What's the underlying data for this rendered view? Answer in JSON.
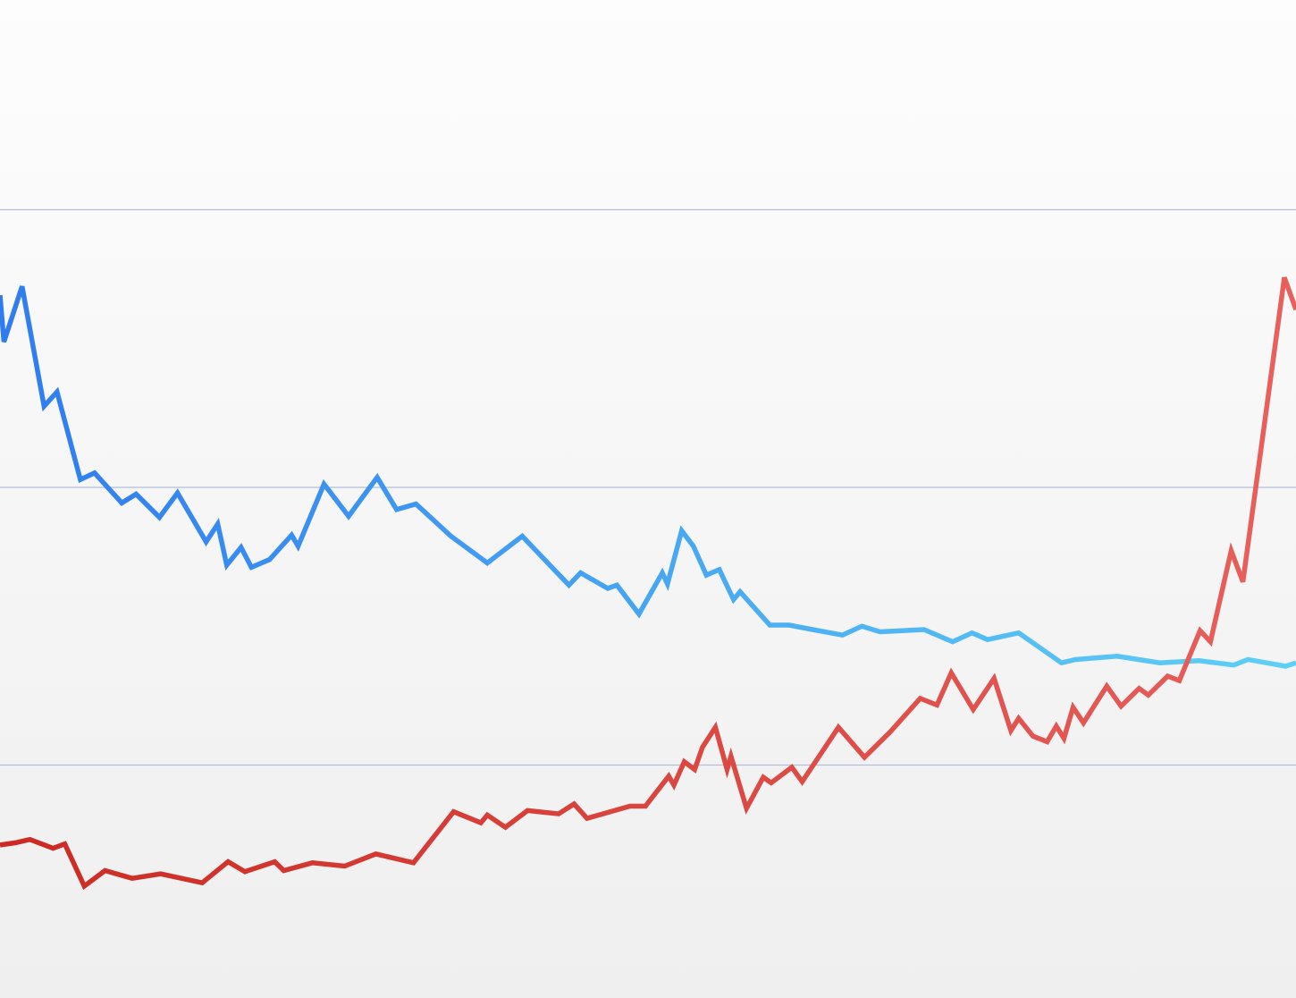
{
  "chart_data": {
    "type": "line",
    "title": "",
    "xlabel": "",
    "ylabel": "",
    "grid": true,
    "legend": "none",
    "ylim": [
      0,
      100
    ],
    "xlim": [
      0,
      100
    ],
    "y_gridlines": [
      25,
      50,
      75
    ],
    "series": [
      {
        "color_start": "#2f7cf0",
        "color_end": "#5fd0f5",
        "points": [
          [
            0.0,
            67.3
          ],
          [
            0.3,
            63.1
          ],
          [
            1.7,
            68.1
          ],
          [
            3.4,
            57.3
          ],
          [
            4.4,
            58.6
          ],
          [
            6.2,
            50.7
          ],
          [
            7.3,
            51.3
          ],
          [
            9.4,
            48.6
          ],
          [
            10.5,
            49.4
          ],
          [
            12.3,
            47.3
          ],
          [
            13.7,
            49.5
          ],
          [
            15.9,
            45.1
          ],
          [
            16.8,
            46.7
          ],
          [
            17.5,
            43.0
          ],
          [
            18.6,
            44.6
          ],
          [
            19.4,
            42.8
          ],
          [
            20.8,
            43.5
          ],
          [
            22.5,
            45.7
          ],
          [
            23.0,
            44.7
          ],
          [
            25.0,
            50.3
          ],
          [
            26.9,
            47.4
          ],
          [
            29.1,
            50.9
          ],
          [
            30.6,
            48.0
          ],
          [
            32.1,
            48.5
          ],
          [
            34.8,
            45.6
          ],
          [
            37.6,
            43.2
          ],
          [
            40.3,
            45.6
          ],
          [
            43.9,
            41.2
          ],
          [
            44.8,
            42.3
          ],
          [
            46.9,
            40.9
          ],
          [
            47.6,
            41.2
          ],
          [
            49.3,
            38.6
          ],
          [
            51.1,
            42.3
          ],
          [
            51.5,
            41.3
          ],
          [
            52.6,
            46.1
          ],
          [
            53.5,
            44.7
          ],
          [
            54.5,
            42.1
          ],
          [
            55.5,
            42.6
          ],
          [
            56.6,
            39.9
          ],
          [
            57.1,
            40.6
          ],
          [
            59.4,
            37.6
          ],
          [
            60.9,
            37.6
          ],
          [
            62.7,
            37.2
          ],
          [
            65.0,
            36.7
          ],
          [
            66.5,
            37.5
          ],
          [
            67.9,
            37.0
          ],
          [
            71.3,
            37.2
          ],
          [
            73.5,
            36.1
          ],
          [
            75.0,
            36.9
          ],
          [
            76.2,
            36.3
          ],
          [
            78.6,
            36.9
          ],
          [
            81.9,
            34.2
          ],
          [
            83.0,
            34.5
          ],
          [
            86.2,
            34.8
          ],
          [
            89.5,
            34.2
          ],
          [
            92.5,
            34.4
          ],
          [
            95.2,
            34.0
          ],
          [
            96.3,
            34.5
          ],
          [
            99.2,
            33.9
          ],
          [
            100.0,
            34.2
          ]
        ]
      },
      {
        "color_start": "#cc2a22",
        "color_end": "#e8605c",
        "points": [
          [
            0.0,
            17.8
          ],
          [
            1.2,
            18.0
          ],
          [
            2.3,
            18.3
          ],
          [
            4.1,
            17.5
          ],
          [
            5.0,
            17.9
          ],
          [
            6.5,
            14.1
          ],
          [
            8.1,
            15.5
          ],
          [
            10.2,
            14.8
          ],
          [
            12.4,
            15.2
          ],
          [
            15.6,
            14.4
          ],
          [
            17.6,
            16.3
          ],
          [
            18.9,
            15.4
          ],
          [
            21.2,
            16.3
          ],
          [
            21.9,
            15.5
          ],
          [
            24.1,
            16.2
          ],
          [
            26.6,
            15.9
          ],
          [
            29.0,
            17.0
          ],
          [
            31.9,
            16.2
          ],
          [
            35.0,
            20.8
          ],
          [
            37.1,
            19.8
          ],
          [
            37.6,
            20.5
          ],
          [
            39.0,
            19.4
          ],
          [
            40.7,
            20.9
          ],
          [
            43.1,
            20.6
          ],
          [
            44.3,
            21.5
          ],
          [
            45.3,
            20.2
          ],
          [
            48.6,
            21.3
          ],
          [
            49.8,
            21.3
          ],
          [
            51.6,
            24.0
          ],
          [
            52.0,
            23.2
          ],
          [
            52.8,
            25.3
          ],
          [
            53.6,
            24.6
          ],
          [
            54.2,
            26.6
          ],
          [
            55.2,
            28.4
          ],
          [
            56.1,
            24.6
          ],
          [
            56.4,
            25.8
          ],
          [
            57.6,
            21.1
          ],
          [
            58.9,
            23.9
          ],
          [
            59.5,
            23.4
          ],
          [
            61.1,
            24.8
          ],
          [
            61.9,
            23.5
          ],
          [
            64.7,
            28.4
          ],
          [
            66.7,
            25.7
          ],
          [
            68.7,
            28.0
          ],
          [
            71.0,
            31.0
          ],
          [
            72.3,
            30.4
          ],
          [
            73.4,
            33.3
          ],
          [
            75.1,
            30.0
          ],
          [
            76.7,
            32.8
          ],
          [
            78.0,
            28.1
          ],
          [
            78.6,
            29.2
          ],
          [
            79.7,
            27.6
          ],
          [
            80.8,
            27.1
          ],
          [
            81.5,
            28.5
          ],
          [
            82.1,
            27.4
          ],
          [
            82.8,
            30.2
          ],
          [
            83.6,
            28.8
          ],
          [
            85.4,
            32.1
          ],
          [
            86.5,
            30.3
          ],
          [
            87.9,
            31.9
          ],
          [
            88.6,
            31.3
          ],
          [
            90.1,
            33.0
          ],
          [
            91.0,
            32.6
          ],
          [
            92.6,
            37.1
          ],
          [
            93.4,
            36.1
          ],
          [
            95.0,
            44.3
          ],
          [
            95.9,
            41.5
          ],
          [
            99.1,
            68.9
          ],
          [
            100.0,
            66.0
          ]
        ]
      }
    ]
  }
}
